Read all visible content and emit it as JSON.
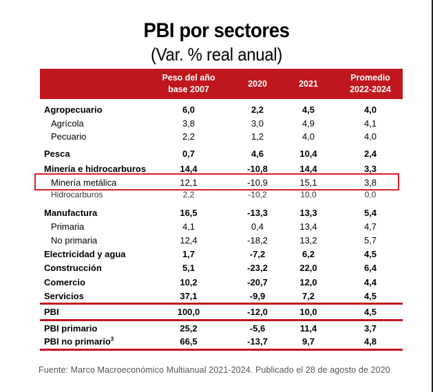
{
  "title": "PBI por sectores",
  "subtitle": "(Var. % real anual)",
  "columns": {
    "weight": [
      "Peso del año",
      "base 2007"
    ],
    "y2020": "2020",
    "y2021": "2021",
    "avg": [
      "Promedio",
      "2022-2024"
    ]
  },
  "rows": [
    {
      "label": "Agropecuario",
      "weight": "6,0",
      "y2020": "2,2",
      "y2021": "4,5",
      "avg": "4,0"
    },
    {
      "label": "Agrícola",
      "weight": "3,8",
      "y2020": "3,0",
      "y2021": "4,9",
      "avg": "4,1"
    },
    {
      "label": "Pecuario",
      "weight": "2,2",
      "y2020": "1,2",
      "y2021": "4,0",
      "avg": "4,0"
    },
    {
      "label": "Pesca",
      "weight": "0,7",
      "y2020": "4,6",
      "y2021": "10,4",
      "avg": "2,4"
    },
    {
      "label": "Minería e hidrocarburos",
      "weight": "14,4",
      "y2020": "-10,8",
      "y2021": "14,4",
      "avg": "3,3"
    },
    {
      "label": "Minería metálica",
      "weight": "12,1",
      "y2020": "-10,9",
      "y2021": "15,1",
      "avg": "3,8"
    },
    {
      "label": "Hidrocarburos",
      "weight": "2,2",
      "y2020": "-10,2",
      "y2021": "10,0",
      "avg": "0,0"
    },
    {
      "label": "Manufactura",
      "weight": "16,5",
      "y2020": "-13,3",
      "y2021": "13,3",
      "avg": "5,4"
    },
    {
      "label": "Primaria",
      "weight": "4,1",
      "y2020": "0,4",
      "y2021": "13,4",
      "avg": "4,7"
    },
    {
      "label": "No primaria",
      "weight": "12,4",
      "y2020": "-18,2",
      "y2021": "13,2",
      "avg": "5,7"
    },
    {
      "label": "Electricidad y agua",
      "weight": "1,7",
      "y2020": "-7,2",
      "y2021": "6,2",
      "avg": "4,5"
    },
    {
      "label": "Construcción",
      "weight": "5,1",
      "y2020": "-23,2",
      "y2021": "22,0",
      "avg": "6,4"
    },
    {
      "label": "Comercio",
      "weight": "10,2",
      "y2020": "-20,7",
      "y2021": "12,0",
      "avg": "4,4"
    },
    {
      "label": "Servicios",
      "weight": "37,1",
      "y2020": "-9,9",
      "y2021": "7,2",
      "avg": "4,5"
    },
    {
      "label": "PBI",
      "weight": "100,0",
      "y2020": "-12,0",
      "y2021": "10,0",
      "avg": "4,5"
    },
    {
      "label": "PBI primario",
      "weight": "25,2",
      "y2020": "-5,6",
      "y2021": "11,4",
      "avg": "3,7"
    },
    {
      "label": "PBI no primario",
      "label_sup": "3",
      "weight": "66,5",
      "y2020": "-13,7",
      "y2021": "9,7",
      "avg": "4,8"
    }
  ],
  "source": "Fuente: Marco Macroeconómico Multianual 2021-2024. Publicado el 28 de agosto de 2020"
}
